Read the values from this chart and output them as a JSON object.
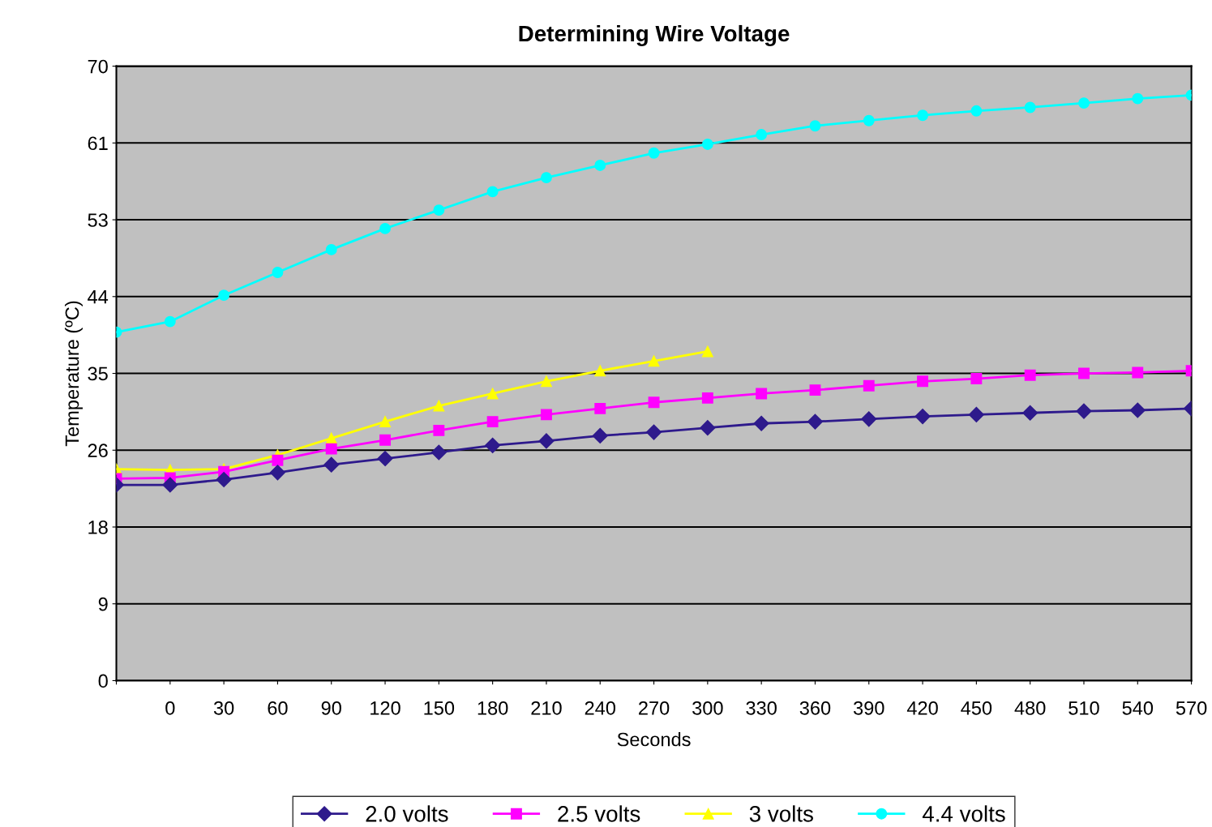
{
  "chart_data": {
    "type": "line",
    "title": "Determining Wire Voltage",
    "xlabel": "Seconds",
    "ylabel": "Temperature (ºC)",
    "categories": [
      null,
      "0",
      "30",
      "60",
      "90",
      "120",
      "150",
      "180",
      "210",
      "240",
      "270",
      "300",
      "330",
      "360",
      "390",
      "420",
      "450",
      "480",
      "510",
      "540",
      "570"
    ],
    "series": [
      {
        "name": "2.0 volts",
        "color": "#2e1a8c",
        "marker": "diamond",
        "values": [
          22.3,
          22.3,
          22.9,
          23.7,
          24.6,
          25.3,
          26.0,
          26.8,
          27.3,
          27.9,
          28.3,
          28.8,
          29.3,
          29.5,
          29.8,
          30.1,
          30.3,
          30.5,
          30.7,
          30.8,
          31.0
        ]
      },
      {
        "name": "2.5 volts",
        "color": "#ff00ff",
        "marker": "square",
        "values": [
          23.0,
          23.1,
          23.8,
          25.1,
          26.4,
          27.4,
          28.5,
          29.5,
          30.3,
          31.0,
          31.7,
          32.2,
          32.7,
          33.1,
          33.6,
          34.1,
          34.4,
          34.8,
          35.0,
          35.1,
          35.3
        ]
      },
      {
        "name": "3 volts",
        "color": "#ffff00",
        "marker": "triangle",
        "values": [
          24.1,
          24.0,
          24.1,
          25.7,
          27.6,
          29.5,
          31.3,
          32.7,
          34.1,
          35.3,
          36.4,
          37.5,
          null,
          null,
          null,
          null,
          null,
          null,
          null,
          null,
          null
        ]
      },
      {
        "name": "4.4 volts",
        "color": "#00ffff",
        "marker": "circle",
        "values": [
          39.7,
          40.9,
          43.9,
          46.5,
          49.1,
          51.5,
          53.6,
          55.7,
          57.3,
          58.7,
          60.1,
          61.1,
          62.2,
          63.2,
          63.8,
          64.4,
          64.9,
          65.3,
          65.8,
          66.3,
          66.7
        ]
      }
    ],
    "ylim": [
      0,
      70
    ],
    "yticks": [
      0,
      {
        "value": 8.75,
        "label": "9"
      },
      {
        "value": 17.5,
        "label": "18"
      },
      {
        "value": 26.25,
        "label": "26"
      },
      35,
      {
        "value": 43.75,
        "label": "44"
      },
      {
        "value": 52.5,
        "label": "53"
      },
      {
        "value": 61.25,
        "label": "61"
      },
      70
    ],
    "grid": "y",
    "legend": "bottom",
    "line_style": "solid"
  }
}
